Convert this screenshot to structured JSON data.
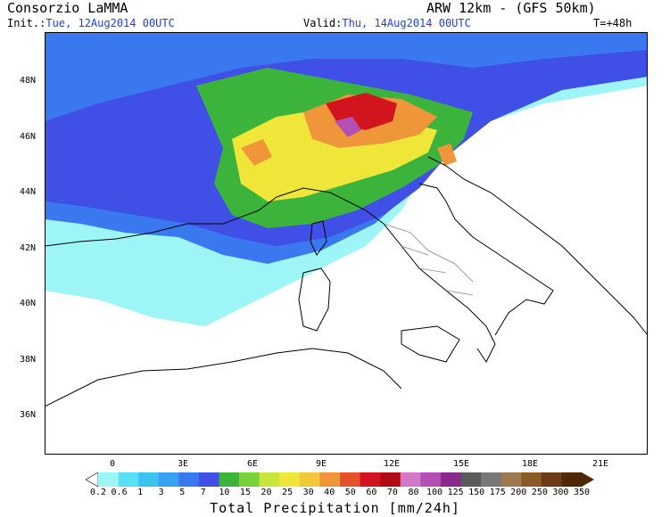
{
  "header": {
    "title": "Consorzio LaMMA",
    "model": "ARW 12km - (GFS 50km)",
    "init_label": "Init.:",
    "init_value": "Tue, 12Aug2014 00UTC",
    "valid_label": "Valid:",
    "valid_value": "Thu, 14Aug2014 00UTC",
    "lead": "T=+48h"
  },
  "axes": {
    "lat_labels": [
      "48N",
      "46N",
      "44N",
      "42N",
      "40N",
      "38N",
      "36N"
    ],
    "lon_labels": [
      "0",
      "3E",
      "6E",
      "9E",
      "12E",
      "15E",
      "18E",
      "21E"
    ]
  },
  "colorbar": {
    "title": "Total Precipitation [mm/24h]",
    "labels": [
      "0.2",
      "0.6",
      "1",
      "3",
      "5",
      "7",
      "10",
      "15",
      "20",
      "25",
      "30",
      "40",
      "50",
      "60",
      "70",
      "80",
      "100",
      "125",
      "150",
      "175",
      "200",
      "250",
      "300",
      "350"
    ],
    "colors": [
      "#9ef5f5",
      "#5ae0f5",
      "#3ac3f0",
      "#3aa0f0",
      "#3a78f0",
      "#4050e6",
      "#3cb43c",
      "#7ad23a",
      "#c8e63a",
      "#f0e63a",
      "#f0c83a",
      "#f0963a",
      "#e6502a",
      "#d2141e",
      "#b40a14",
      "#d278c8",
      "#b450b4",
      "#8c288c",
      "#5a5a5a",
      "#787878",
      "#a07850",
      "#8c5a28",
      "#6e3c14",
      "#502808"
    ]
  },
  "map": {
    "precip_colors": {
      "light_cyan": "#9ef5f5",
      "blue": "#3a78f0",
      "dark_blue": "#4050e6",
      "green": "#3cb43c",
      "yellow": "#f0e63a",
      "orange": "#f0963a",
      "red": "#d2141e",
      "magenta": "#b450b4"
    }
  }
}
